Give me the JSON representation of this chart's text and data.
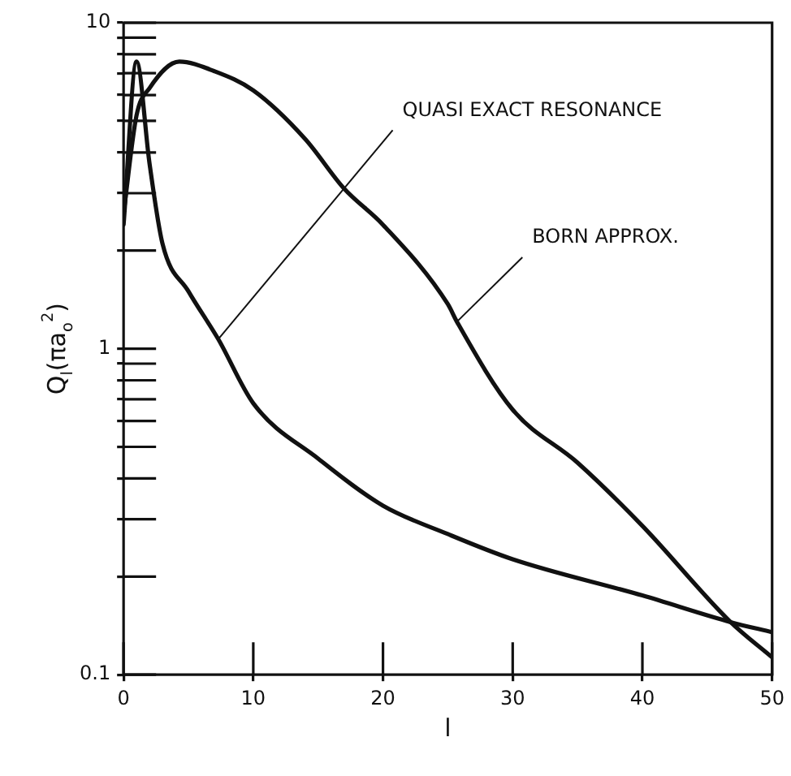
{
  "chart_data": {
    "type": "line",
    "xlabel": "l",
    "ylabel": "Q$_{l}$(πa$_{o}$$^{2}$)",
    "log": "y",
    "xlim": [
      0,
      50
    ],
    "xticks": [
      0,
      10,
      20,
      30,
      40,
      50
    ],
    "ylim": [
      0.1,
      10
    ],
    "yticks": [
      0.1,
      {
        "value": 0.2,
        "label": null
      },
      {
        "value": 0.3,
        "label": null
      },
      {
        "value": 0.4,
        "label": null
      },
      {
        "value": 0.5,
        "label": null
      },
      {
        "value": 0.6,
        "label": null
      },
      {
        "value": 0.7,
        "label": null
      },
      {
        "value": 0.8,
        "label": null
      },
      {
        "value": 0.9,
        "label": null
      },
      1,
      {
        "value": 2,
        "label": null
      },
      {
        "value": 3,
        "label": null
      },
      {
        "value": 4,
        "label": null
      },
      {
        "value": 5,
        "label": null
      },
      {
        "value": 6,
        "label": null
      },
      {
        "value": 7,
        "label": null
      },
      {
        "value": 8,
        "label": null
      },
      {
        "value": 9,
        "label": null
      },
      10
    ],
    "grid": false,
    "legend": false,
    "marker": "none",
    "line_style": "solid",
    "series": [
      {
        "color": "#111111",
        "x": [
          0,
          1,
          2,
          3,
          5,
          7.3,
          10,
          15,
          20,
          25,
          30,
          40,
          46.8,
          50
        ],
        "values": [
          2.4,
          7.6,
          3.7,
          2.1,
          1.5,
          1.07,
          0.68,
          0.46,
          0.33,
          0.27,
          0.226,
          0.175,
          0.145,
          0.135
        ]
      },
      {
        "color": "#111111",
        "x": [
          0,
          1,
          2,
          4.3,
          7,
          10,
          14,
          17,
          20,
          25,
          25.7,
          30,
          35,
          40,
          46.8,
          50
        ],
        "values": [
          2.6,
          5.2,
          6.3,
          7.6,
          7.1,
          6.2,
          4.4,
          3.1,
          2.4,
          1.37,
          1.21,
          0.65,
          0.447,
          0.286,
          0.145,
          0.113
        ]
      }
    ],
    "annotations": [
      {
        "text": "QUASI EXACT RESONANCE",
        "x": 7.3,
        "y": 1.07
      },
      {
        "text": "BORN APPROX.",
        "x": 25.7,
        "y": 1.21
      }
    ]
  }
}
